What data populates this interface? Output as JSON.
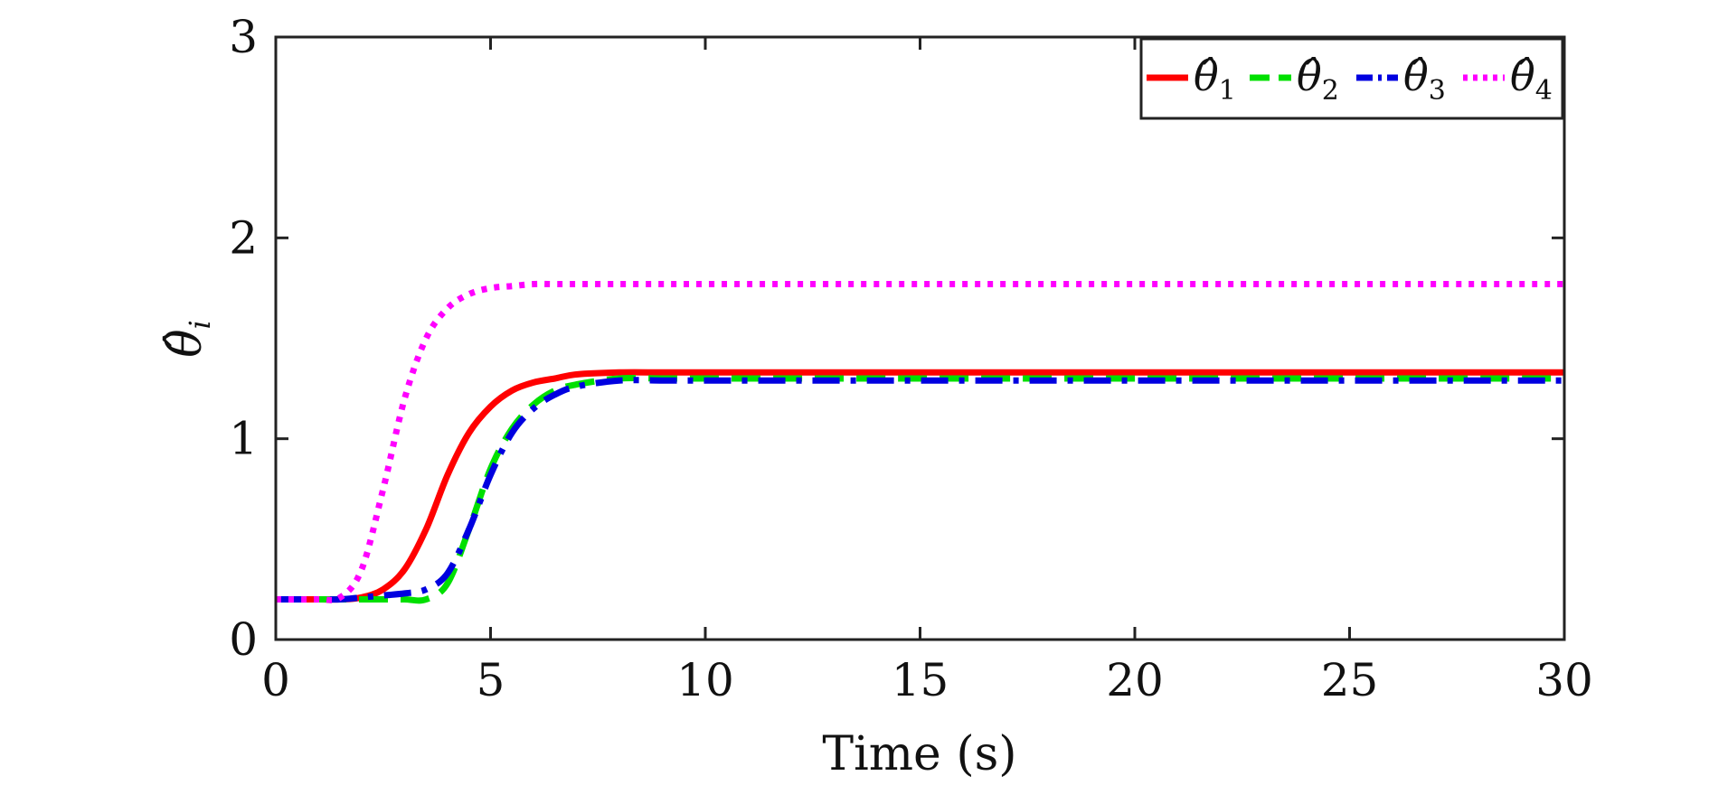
{
  "chart_data": {
    "type": "line",
    "xlabel": "Time (s)",
    "ylabel": "θ̂",
    "ylabel_sub": "i",
    "xlim": [
      0,
      30
    ],
    "ylim": [
      0,
      3
    ],
    "xticks": [
      0,
      5,
      10,
      15,
      20,
      25,
      30
    ],
    "yticks": [
      0,
      1,
      2,
      3
    ],
    "grid": false,
    "legend_position": "top-right",
    "x": [
      0,
      1,
      1.5,
      2,
      2.5,
      3,
      3.5,
      4,
      4.5,
      5,
      5.5,
      6,
      6.5,
      7,
      8,
      9,
      10,
      15,
      20,
      25,
      30
    ],
    "series": [
      {
        "name": "θ̂",
        "sub": "1",
        "color": "#ff0000",
        "dash": "solid",
        "values": [
          0.2,
          0.2,
          0.2,
          0.21,
          0.25,
          0.35,
          0.55,
          0.82,
          1.03,
          1.16,
          1.24,
          1.28,
          1.3,
          1.32,
          1.33,
          1.33,
          1.33,
          1.33,
          1.33,
          1.33,
          1.33
        ]
      },
      {
        "name": "θ̂",
        "sub": "2",
        "color": "#00e000",
        "dash": "dashed",
        "values": [
          0.2,
          0.2,
          0.2,
          0.2,
          0.2,
          0.2,
          0.2,
          0.28,
          0.55,
          0.85,
          1.05,
          1.17,
          1.24,
          1.27,
          1.3,
          1.3,
          1.3,
          1.3,
          1.3,
          1.3,
          1.3
        ]
      },
      {
        "name": "θ̂",
        "sub": "3",
        "color": "#0000e0",
        "dash": "dashdot",
        "values": [
          0.2,
          0.2,
          0.2,
          0.21,
          0.22,
          0.23,
          0.25,
          0.33,
          0.55,
          0.82,
          1.03,
          1.15,
          1.22,
          1.26,
          1.29,
          1.29,
          1.29,
          1.29,
          1.29,
          1.29,
          1.29
        ]
      },
      {
        "name": "θ̂",
        "sub": "4",
        "color": "#ff00ff",
        "dash": "dotted",
        "values": [
          0.2,
          0.2,
          0.21,
          0.35,
          0.75,
          1.2,
          1.5,
          1.65,
          1.72,
          1.75,
          1.76,
          1.77,
          1.77,
          1.77,
          1.77,
          1.77,
          1.77,
          1.77,
          1.77,
          1.77,
          1.77
        ]
      }
    ]
  }
}
